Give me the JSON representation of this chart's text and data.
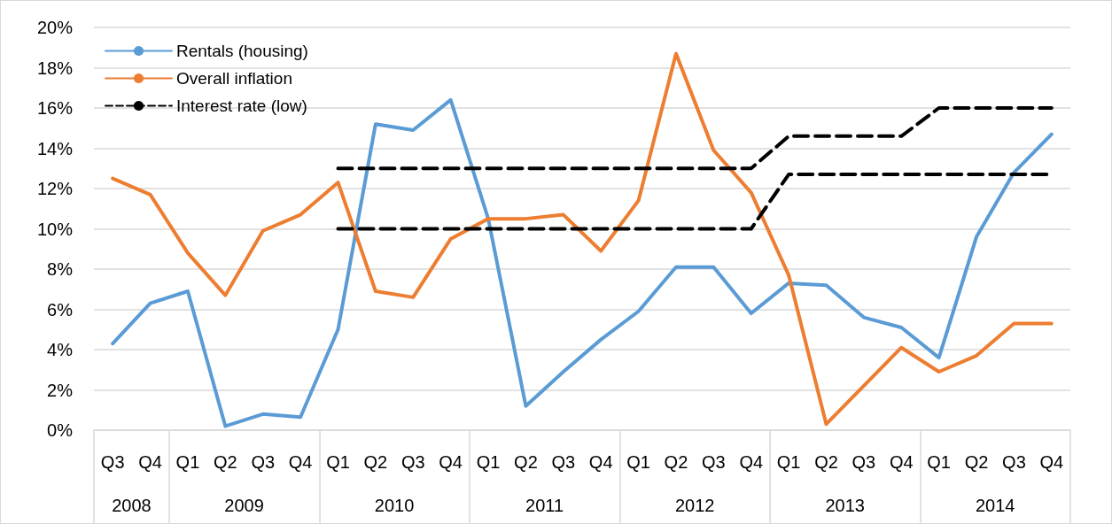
{
  "chart_data": {
    "type": "line",
    "categories": [
      "Q3",
      "Q4",
      "Q1",
      "Q2",
      "Q3",
      "Q4",
      "Q1",
      "Q2",
      "Q3",
      "Q4",
      "Q1",
      "Q2",
      "Q3",
      "Q4",
      "Q1",
      "Q2",
      "Q3",
      "Q4",
      "Q1",
      "Q2",
      "Q3",
      "Q4",
      "Q1",
      "Q2",
      "Q3",
      "Q4"
    ],
    "annotations": [
      "2008",
      "2009",
      "2010",
      "2011",
      "2012",
      "2013",
      "2014"
    ],
    "series": [
      {
        "name": "Rentals (housing)",
        "color": "#5b9bd5",
        "values": [
          4.3,
          6.3,
          6.9,
          0.2,
          0.8,
          0.65,
          5.0,
          15.2,
          14.9,
          16.4,
          10.5,
          1.2,
          2.9,
          4.5,
          5.9,
          8.1,
          8.1,
          5.8,
          7.3,
          7.2,
          5.6,
          5.1,
          3.6,
          9.6,
          12.8,
          14.7
        ]
      },
      {
        "name": "Overall inflation",
        "color": "#ed7d31",
        "values": [
          12.5,
          11.7,
          8.8,
          6.7,
          9.9,
          10.7,
          12.3,
          6.9,
          6.6,
          9.5,
          10.5,
          10.5,
          10.7,
          8.9,
          11.4,
          18.7,
          13.9,
          11.8,
          7.7,
          0.3,
          2.2,
          4.1,
          2.9,
          3.7,
          5.3,
          5.3
        ]
      },
      {
        "name": "Interest rate (low)",
        "color": "#000000",
        "line_style": "dashed",
        "values": [
          null,
          null,
          null,
          null,
          null,
          null,
          13,
          13,
          13,
          13,
          13,
          13,
          13,
          13,
          13,
          13,
          13,
          13,
          14.6,
          14.6,
          14.6,
          14.6,
          16,
          16,
          16,
          16
        ]
      },
      {
        "color": "#000000",
        "line_style": "dashed",
        "values": [
          null,
          null,
          null,
          null,
          null,
          null,
          10,
          10,
          10,
          10,
          10,
          10,
          10,
          10,
          10,
          10,
          10,
          10,
          12.7,
          12.7,
          12.7,
          12.7,
          12.7,
          12.7,
          12.7,
          12.7
        ]
      }
    ],
    "ylim": [
      0,
      20
    ],
    "yticks": [
      {
        "value": 0,
        "label": "0%"
      },
      {
        "value": 2,
        "label": "2%"
      },
      {
        "value": 4,
        "label": "4%"
      },
      {
        "value": 6,
        "label": "6%"
      },
      {
        "value": 8,
        "label": "8%"
      },
      {
        "value": 10,
        "label": "10%"
      },
      {
        "value": 12,
        "label": "12%"
      },
      {
        "value": 14,
        "label": "14%"
      },
      {
        "value": 16,
        "label": "16%"
      },
      {
        "value": 18,
        "label": "18%"
      },
      {
        "value": 20,
        "label": "20%"
      }
    ],
    "grid": "y",
    "legend": "top left",
    "marker": "none",
    "line_style": "solid"
  }
}
